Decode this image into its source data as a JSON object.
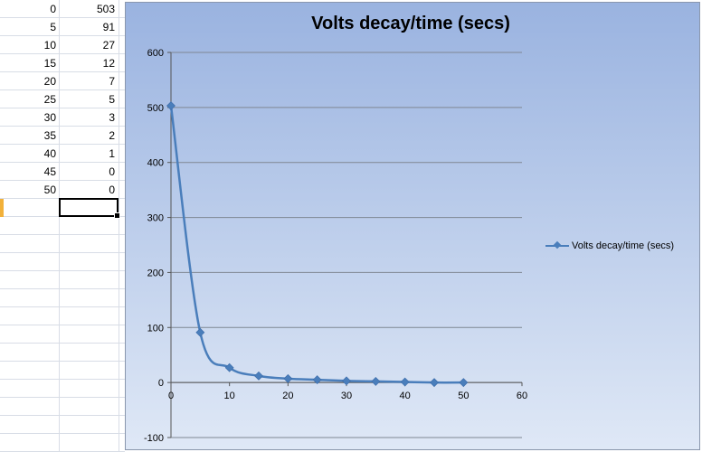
{
  "sheet": {
    "rows": [
      {
        "a": "0",
        "b": "503"
      },
      {
        "a": "5",
        "b": "91"
      },
      {
        "a": "10",
        "b": "27"
      },
      {
        "a": "15",
        "b": "12"
      },
      {
        "a": "20",
        "b": "7"
      },
      {
        "a": "25",
        "b": "5"
      },
      {
        "a": "30",
        "b": "3"
      },
      {
        "a": "35",
        "b": "2"
      },
      {
        "a": "40",
        "b": "1"
      },
      {
        "a": "45",
        "b": "0"
      },
      {
        "a": "50",
        "b": "0"
      }
    ],
    "empty_rows": 14
  },
  "chart_data": {
    "type": "line",
    "title": "Volts decay/time (secs)",
    "xlabel": "",
    "ylabel": "",
    "x": [
      0,
      5,
      10,
      15,
      20,
      25,
      30,
      35,
      40,
      45,
      50
    ],
    "series": [
      {
        "name": "Volts decay/time (secs)",
        "values": [
          503,
          91,
          27,
          12,
          7,
          5,
          3,
          2,
          1,
          0,
          0
        ],
        "color": "#4a7ebb",
        "marker": "diamond",
        "smoothed": true
      }
    ],
    "xlim": [
      0,
      60
    ],
    "ylim": [
      -100,
      600
    ],
    "x_ticks": [
      0,
      10,
      20,
      30,
      40,
      50,
      60
    ],
    "y_ticks": [
      -100,
      0,
      100,
      200,
      300,
      400,
      500,
      600
    ],
    "grid": "horizontal",
    "legend": "right",
    "background": "blue-gradient"
  }
}
